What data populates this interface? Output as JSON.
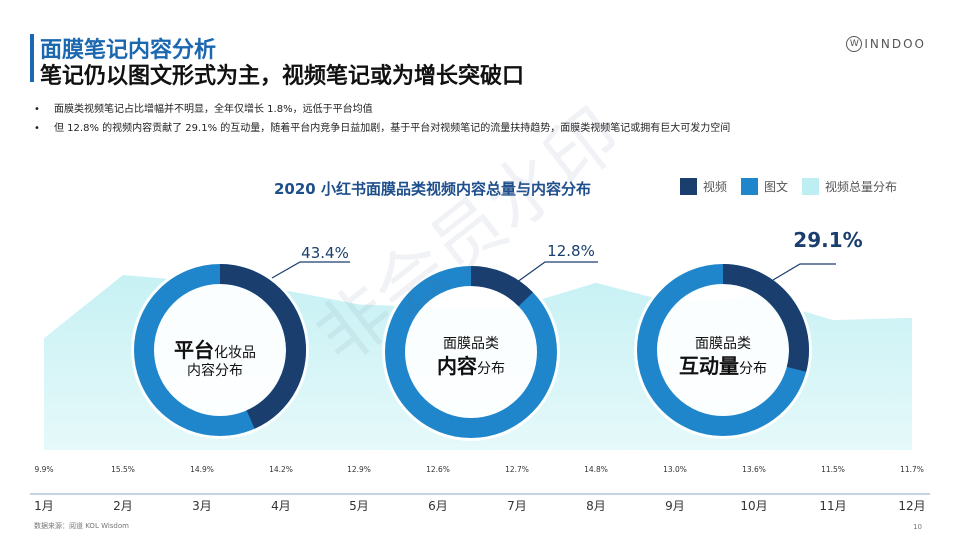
{
  "header": {
    "title": "面膜笔记内容分析",
    "subtitle": "笔记仍以图文形式为主，视频笔记或为增长突破口",
    "logo_text": "INNDOO",
    "logo_mark": "W"
  },
  "bullets": [
    "面膜类视频笔记占比增幅并不明显，全年仅增长 1.8%，远低于平台均值",
    "但 12.8% 的视频内容贡献了 29.1% 的互动量，随着平台内竞争日益加剧，基于平台对视频笔记的流量扶持趋势，面膜类视频笔记或拥有巨大可发力空间"
  ],
  "footer": {
    "source": "数据来源：阅道 KOL Wisdom",
    "page": "10"
  },
  "watermark": "非会员水印",
  "colors": {
    "video": "#1a3e6e",
    "image_text": "#1f86cb",
    "area": "#bdeef2",
    "accent": "#1b67b0"
  },
  "chart_data": {
    "type": "area",
    "title": "2020 小红书面膜品类视频内容总量与内容分布",
    "legend": [
      "视频",
      "图文",
      "视频总量分布"
    ],
    "legend_position": "top-right",
    "x": [
      "1月",
      "2月",
      "3月",
      "4月",
      "5月",
      "6月",
      "7月",
      "8月",
      "9月",
      "10月",
      "11月",
      "12月"
    ],
    "series": [
      {
        "name": "视频总量分布",
        "values": [
          9.9,
          15.5,
          14.9,
          14.2,
          12.9,
          12.6,
          12.7,
          14.8,
          13.0,
          13.6,
          11.5,
          11.7
        ],
        "labels": [
          "9.9%",
          "15.5%",
          "14.9%",
          "14.2%",
          "12.9%",
          "12.6%",
          "12.7%",
          "14.8%",
          "13.0%",
          "13.6%",
          "11.5%",
          "11.7%"
        ]
      }
    ],
    "donuts": [
      {
        "label_big": "平台",
        "label_rest": "化妆品",
        "label_line2": "内容分布",
        "video_pct": 43.4,
        "value_label": "43.4%"
      },
      {
        "label_line1": "面膜品类",
        "label_big": "内容",
        "label_rest": "分布",
        "video_pct": 12.8,
        "value_label": "12.8%"
      },
      {
        "label_line1": "面膜品类",
        "label_big": "互动量",
        "label_rest": "分布",
        "video_pct": 29.1,
        "value_label": "29.1%"
      }
    ]
  }
}
